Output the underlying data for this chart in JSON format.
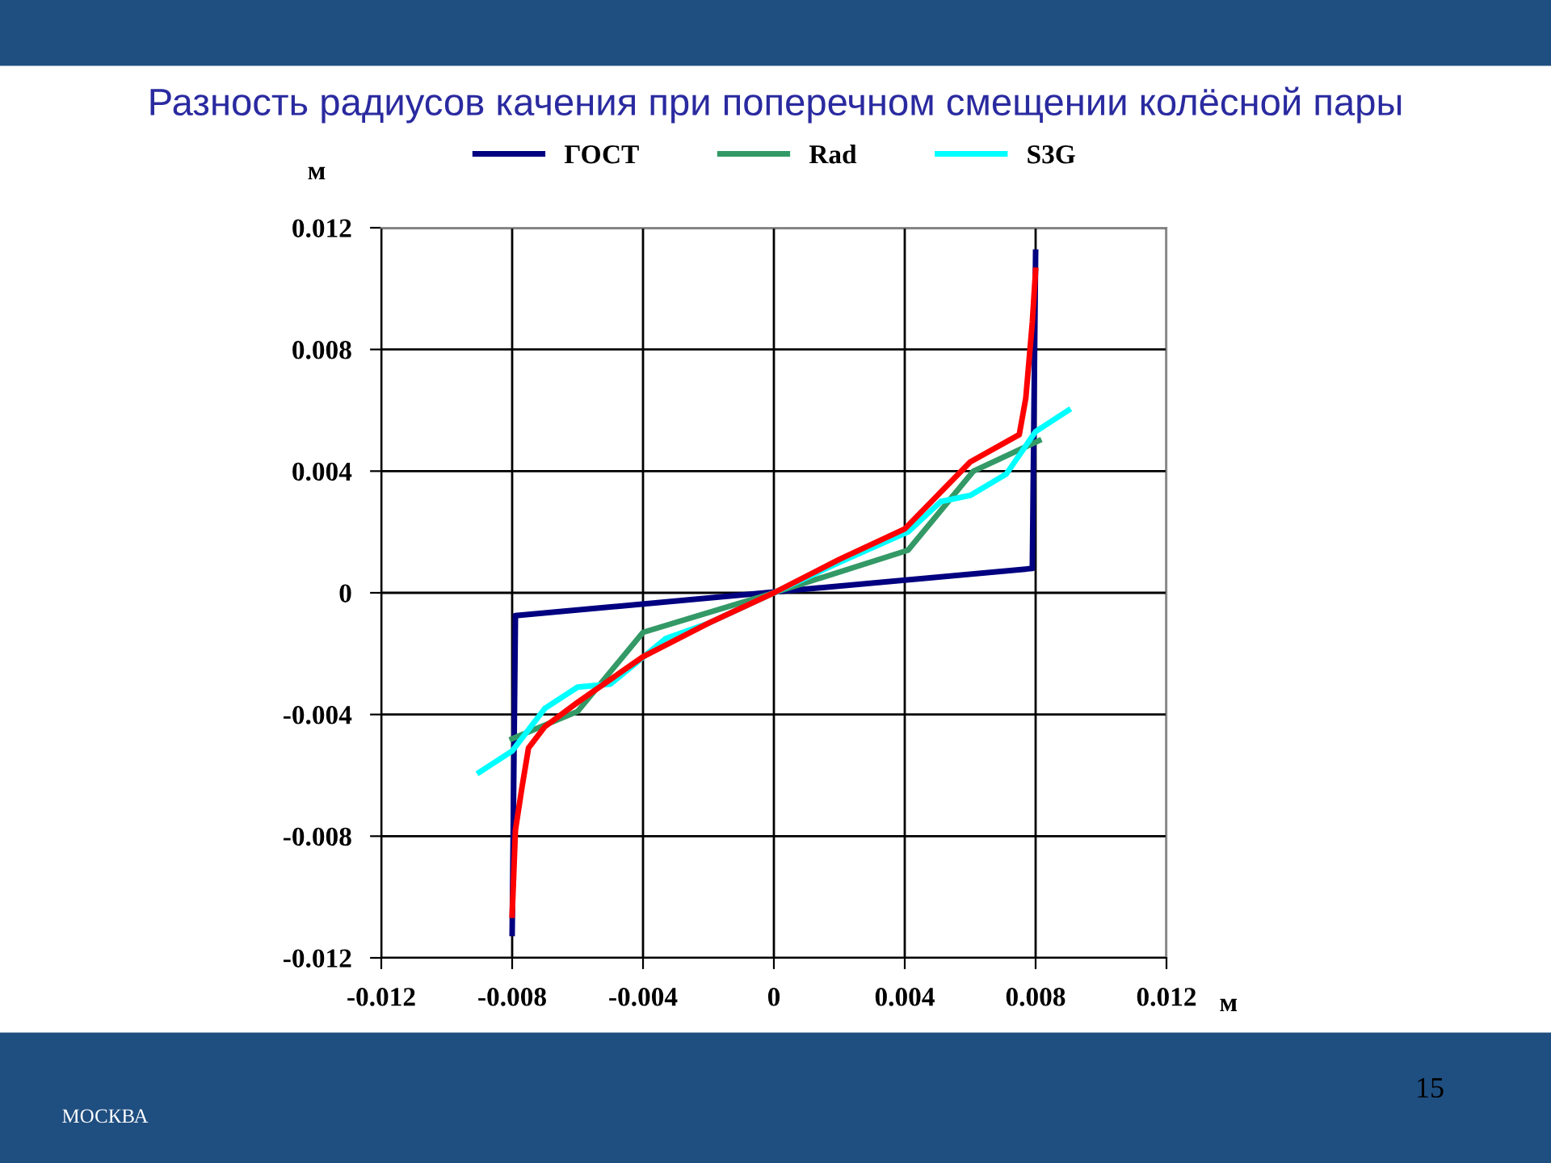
{
  "chart_data": {
    "type": "line",
    "title": "Разность радиусов качения при поперечном смещении колёсной пары",
    "xlabel": "м",
    "ylabel": "м",
    "xlim": [
      -0.012,
      0.012
    ],
    "ylim": [
      -0.012,
      0.012
    ],
    "xticks": [
      -0.012,
      -0.008,
      -0.004,
      0,
      0.004,
      0.008,
      0.012
    ],
    "yticks": [
      -0.012,
      -0.008,
      -0.004,
      0,
      0.004,
      0.008,
      0.012
    ],
    "grid": true,
    "legend": "top",
    "line_style": "solid",
    "marker": "none",
    "annotations": [
      "15",
      "МОСКВА"
    ],
    "series": [
      {
        "name": "ГОСТ",
        "color": "#000080",
        "x": [
          -0.008,
          -0.0079,
          0.0079,
          0.008
        ],
        "values": [
          -0.0112,
          -0.00075,
          0.0008,
          0.0112
        ]
      },
      {
        "name": "Rad",
        "color": "#339966",
        "x": [
          -0.008,
          -0.006,
          -0.004,
          0,
          0.0041,
          0.0061,
          0.0081
        ],
        "values": [
          -0.0048,
          -0.0039,
          -0.0013,
          0,
          0.0014,
          0.004,
          0.005
        ]
      },
      {
        "name": "S3G",
        "color": "#00ffff",
        "x": [
          -0.009,
          -0.008,
          -0.007,
          -0.006,
          -0.005,
          -0.0033,
          -0.002,
          0,
          0.002,
          0.0041,
          0.0051,
          0.006,
          0.0071,
          0.008,
          0.009
        ],
        "values": [
          -0.0059,
          -0.0052,
          -0.0038,
          -0.0031,
          -0.003,
          -0.0015,
          -0.001,
          0,
          0.001,
          0.002,
          0.003,
          0.0032,
          0.0039,
          0.0053,
          0.006
        ]
      },
      {
        "color": "#ff0000",
        "x": [
          -0.008,
          -0.0079,
          -0.0077,
          -0.0075,
          -0.007,
          -0.006,
          -0.004,
          -0.002,
          0,
          0.002,
          0.004,
          0.006,
          0.0075,
          0.0077,
          0.0079,
          0.008
        ],
        "values": [
          -0.0106,
          -0.0078,
          -0.0064,
          -0.0051,
          -0.0044,
          -0.0036,
          -0.0021,
          -0.001,
          0,
          0.0011,
          0.0021,
          0.0043,
          0.0052,
          0.0064,
          0.0089,
          0.0106
        ]
      }
    ]
  }
}
